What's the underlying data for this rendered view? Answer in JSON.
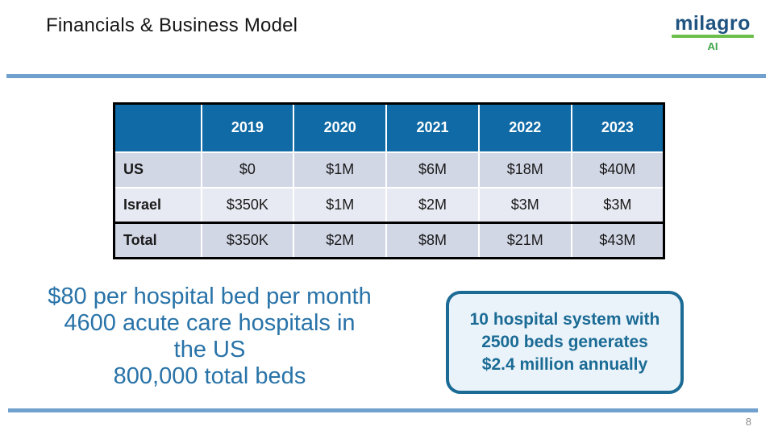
{
  "slide": {
    "title": "Financials & Business Model",
    "page_number": "8"
  },
  "logo": {
    "brand": "milagro",
    "sub": "AI",
    "brand_color": "#1F5380",
    "green": "#6CBF4B"
  },
  "table": {
    "columns": [
      "",
      "2019",
      "2020",
      "2021",
      "2022",
      "2023"
    ],
    "rows": [
      {
        "label": "US",
        "values": [
          "$0",
          "$1M",
          "$6M",
          "$18M",
          "$40M"
        ]
      },
      {
        "label": "Israel",
        "values": [
          "$350K",
          "$1M",
          "$2M",
          "$3M",
          "$3M"
        ]
      },
      {
        "label": "Total",
        "values": [
          "$350K",
          "$2M",
          "$8M",
          "$21M",
          "$43M"
        ]
      }
    ],
    "header_bg": "#0F6AA5",
    "band_dark": "#D2D7E6",
    "band_light": "#E8EAF3"
  },
  "notes": {
    "lines": [
      "$80 per hospital bed per month",
      "4600 acute care hospitals in",
      "the US",
      "800,000 total beds"
    ],
    "text_color": "#2973A8"
  },
  "callout": {
    "lines": [
      "10 hospital system with",
      "2500 beds generates",
      "$2.4 million annually"
    ],
    "border_color": "#1B6B95",
    "bg_color": "#EAF3FA"
  },
  "rules": {
    "color": "#6FA0CE"
  }
}
